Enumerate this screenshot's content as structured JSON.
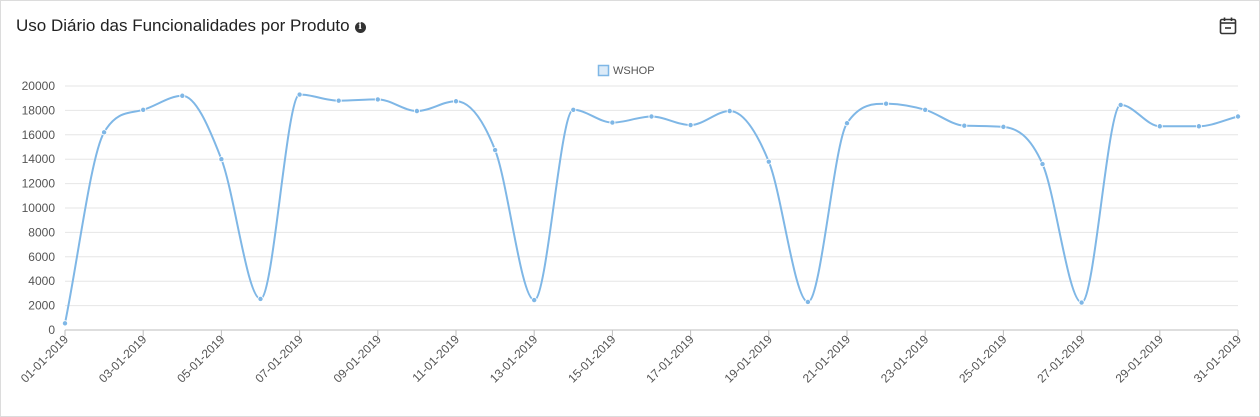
{
  "header": {
    "title": "Uso Diário das Funcionalidades por Produto",
    "info_icon": "info-circle-icon",
    "calendar_icon": "calendar-icon"
  },
  "chart_data": {
    "type": "line",
    "title": "Uso Diário das Funcionalidades por Produto",
    "xlabel": "",
    "ylabel": "",
    "ylim": [
      0,
      20000
    ],
    "yticks": [
      "0",
      "2000",
      "4000",
      "6000",
      "8000",
      "10000",
      "12000",
      "14000",
      "16000",
      "18000",
      "20000"
    ],
    "grid": true,
    "legend": "top-center",
    "color": "#7fb7e6",
    "x": [
      "01-01-2019",
      "02-01-2019",
      "03-01-2019",
      "04-01-2019",
      "05-01-2019",
      "06-01-2019",
      "07-01-2019",
      "08-01-2019",
      "09-01-2019",
      "10-01-2019",
      "11-01-2019",
      "12-01-2019",
      "13-01-2019",
      "14-01-2019",
      "15-01-2019",
      "16-01-2019",
      "17-01-2019",
      "18-01-2019",
      "19-01-2019",
      "20-01-2019",
      "21-01-2019",
      "22-01-2019",
      "23-01-2019",
      "24-01-2019",
      "25-01-2019",
      "26-01-2019",
      "27-01-2019",
      "28-01-2019",
      "29-01-2019",
      "30-01-2019",
      "31-01-2019"
    ],
    "xtick_labels": [
      "01-01-2019",
      "03-01-2019",
      "05-01-2019",
      "07-01-2019",
      "09-01-2019",
      "11-01-2019",
      "13-01-2019",
      "15-01-2019",
      "17-01-2019",
      "19-01-2019",
      "21-01-2019",
      "23-01-2019",
      "25-01-2019",
      "27-01-2019",
      "29-01-2019",
      "31-01-2019"
    ],
    "series": [
      {
        "name": "WSHOP",
        "values": [
          550,
          16200,
          18050,
          19200,
          14000,
          2550,
          19300,
          18800,
          18900,
          17950,
          18750,
          14750,
          2450,
          18050,
          17000,
          17500,
          16800,
          17950,
          13800,
          2300,
          16950,
          18550,
          18050,
          16750,
          16650,
          13600,
          2250,
          18450,
          16700,
          16700,
          17500
        ]
      }
    ]
  }
}
